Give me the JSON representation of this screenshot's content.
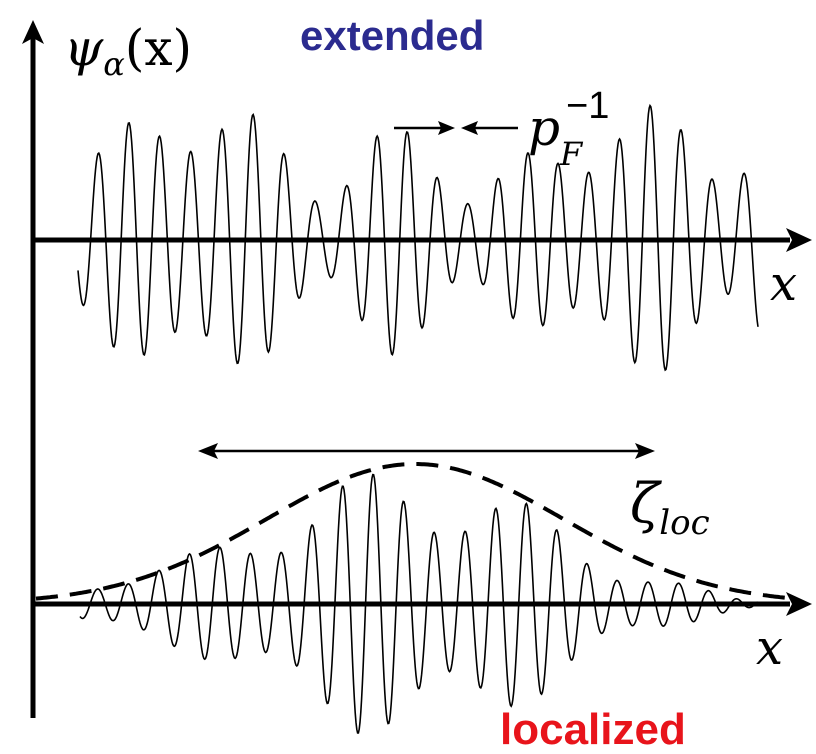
{
  "labels": {
    "extended": "extended",
    "localized": "localized",
    "psi_symbol": "ψ",
    "psi_subscript": "α",
    "psi_argument": "(x)",
    "axis_x_top": "x",
    "axis_x_bottom": "x",
    "wavelength_base": "p",
    "wavelength_subscript": "F",
    "wavelength_exponent": "−1",
    "localization_symbol": "ζ",
    "localization_subscript": "loc"
  },
  "colors": {
    "extended": "#2b2b8f",
    "localized": "#e8141b",
    "ink": "#000000"
  }
}
